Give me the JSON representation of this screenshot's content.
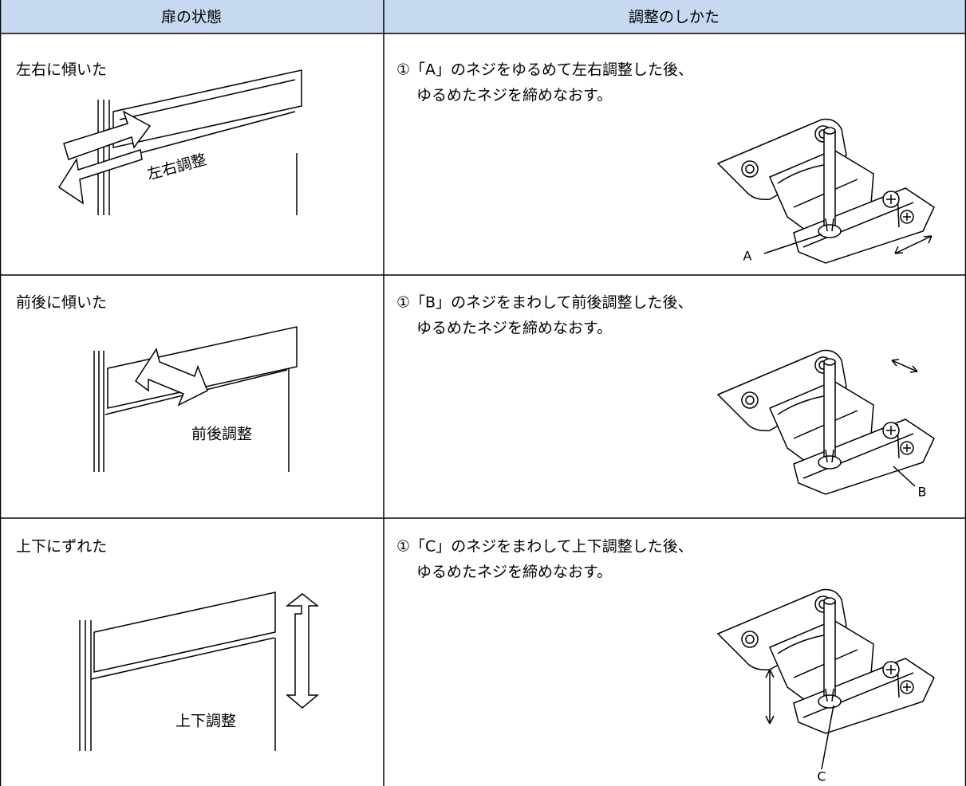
{
  "table": {
    "headers": [
      "扉の状態",
      "調整のしかた"
    ],
    "rows": [
      {
        "state": "左右に傾いた",
        "instruction": [
          "①「A」のネジをゆるめて左右調整した後、",
          "ゆるめたネジを締めなおす。"
        ],
        "door_label": "左右調整",
        "hinge_label": "A"
      },
      {
        "state": "前後に傾いた",
        "instruction": [
          "①「B」のネジをまわして前後調整した後、",
          "ゆるめたネジを締めなおす。"
        ],
        "door_label": "前後調整",
        "hinge_label": "B"
      },
      {
        "state": "上下にずれた",
        "instruction": [
          "①「C」のネジをまわして上下調整した後、",
          "ゆるめたネジを締めなおす。"
        ],
        "door_label": "上下調整",
        "hinge_label": "C"
      }
    ]
  }
}
